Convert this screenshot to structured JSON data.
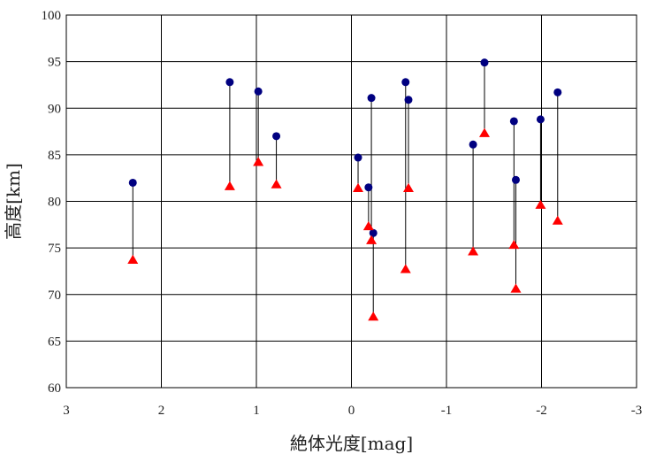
{
  "chart_data": {
    "type": "scatter",
    "xlabel": "絶体光度[mag]",
    "ylabel": "高度[km]",
    "xlim": [
      3,
      -3
    ],
    "ylim": [
      60,
      100
    ],
    "x_ticks": [
      3,
      2,
      1,
      0,
      -1,
      -2,
      -3
    ],
    "y_ticks": [
      60,
      65,
      70,
      75,
      80,
      85,
      90,
      95,
      100
    ],
    "grid": true,
    "legend": "none",
    "colors": {
      "start": "#000080",
      "end": "#ff0000",
      "stem": "#000000"
    },
    "markers": {
      "start": "circle",
      "end": "triangle"
    },
    "pairs": [
      {
        "x": 2.3,
        "start": 82.0,
        "end": 73.7
      },
      {
        "x": 1.28,
        "start": 92.8,
        "end": 81.6
      },
      {
        "x": 0.98,
        "start": 91.8,
        "end": 84.2
      },
      {
        "x": 0.79,
        "start": 87.0,
        "end": 81.8
      },
      {
        "x": -0.07,
        "start": 84.7,
        "end": 81.4
      },
      {
        "x": -0.18,
        "start": 81.5,
        "end": 77.3
      },
      {
        "x": -0.21,
        "start": 91.1,
        "end": 75.8
      },
      {
        "x": -0.23,
        "start": 76.6,
        "end": 67.6
      },
      {
        "x": -0.57,
        "start": 92.8,
        "end": 72.7
      },
      {
        "x": -0.6,
        "start": 90.9,
        "end": 81.4
      },
      {
        "x": -1.28,
        "start": 86.1,
        "end": 74.6
      },
      {
        "x": -1.4,
        "start": 94.9,
        "end": 87.3
      },
      {
        "x": -1.71,
        "start": 88.6,
        "end": 75.3
      },
      {
        "x": -1.73,
        "start": 82.3,
        "end": 70.6
      },
      {
        "x": -1.99,
        "start": 88.8,
        "end": 79.6
      },
      {
        "x": -2.17,
        "start": 91.7,
        "end": 77.9
      }
    ]
  }
}
